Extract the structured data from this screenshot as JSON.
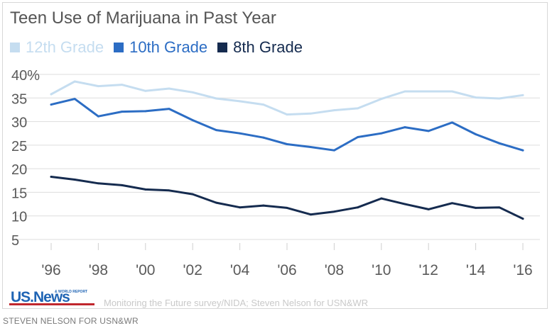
{
  "chart_data": {
    "type": "line",
    "title": "Teen Use of Marijuana in Past Year",
    "x": [
      1996,
      1997,
      1998,
      1999,
      2000,
      2001,
      2002,
      2003,
      2004,
      2005,
      2006,
      2007,
      2008,
      2009,
      2010,
      2011,
      2012,
      2013,
      2014,
      2015,
      2016
    ],
    "x_tick_values": [
      1996,
      1998,
      2000,
      2002,
      2004,
      2006,
      2008,
      2010,
      2012,
      2014,
      2016
    ],
    "x_tick_labels": [
      "'96",
      "'98",
      "'00",
      "'02",
      "'04",
      "'06",
      "'08",
      "'10",
      "'12",
      "'14",
      "'16"
    ],
    "y_tick_values": [
      5,
      10,
      15,
      20,
      25,
      30,
      35,
      40
    ],
    "y_tick_labels": [
      "5",
      "10",
      "15",
      "20",
      "25",
      "30",
      "35",
      "40%"
    ],
    "ylim": [
      5,
      40
    ],
    "xlim": [
      1996,
      2016
    ],
    "grid": true,
    "legend_position": "top-left",
    "series": [
      {
        "name": "12th Grade",
        "color": "#c5ddf0",
        "values": [
          35.8,
          38.5,
          37.5,
          37.8,
          36.5,
          37.0,
          36.2,
          34.9,
          34.3,
          33.6,
          31.5,
          31.7,
          32.4,
          32.8,
          34.8,
          36.4,
          36.4,
          36.4,
          35.1,
          34.9,
          35.6
        ]
      },
      {
        "name": "10th Grade",
        "color": "#2c6dc4",
        "values": [
          33.6,
          34.8,
          31.1,
          32.1,
          32.2,
          32.7,
          30.3,
          28.2,
          27.5,
          26.6,
          25.2,
          24.6,
          23.9,
          26.7,
          27.5,
          28.8,
          28.0,
          29.8,
          27.3,
          25.4,
          23.9
        ]
      },
      {
        "name": "8th Grade",
        "color": "#152b4f",
        "values": [
          18.3,
          17.7,
          16.9,
          16.5,
          15.6,
          15.4,
          14.6,
          12.8,
          11.8,
          12.2,
          11.7,
          10.3,
          10.9,
          11.8,
          13.7,
          12.5,
          11.4,
          12.7,
          11.7,
          11.8,
          9.4
        ]
      }
    ]
  },
  "source": "Monitoring the Future survey/NIDA; Steven Nelson for USN&WR",
  "credit": "STEVEN NELSON FOR USN&WR",
  "logo": {
    "text": "US.News",
    "subtext": "& WORLD REPORT"
  },
  "colors": {
    "grid": "#dddddd",
    "axis_text": "#5a5a5a",
    "logo_blue": "#1f64b4",
    "logo_red": "#c0272d"
  }
}
